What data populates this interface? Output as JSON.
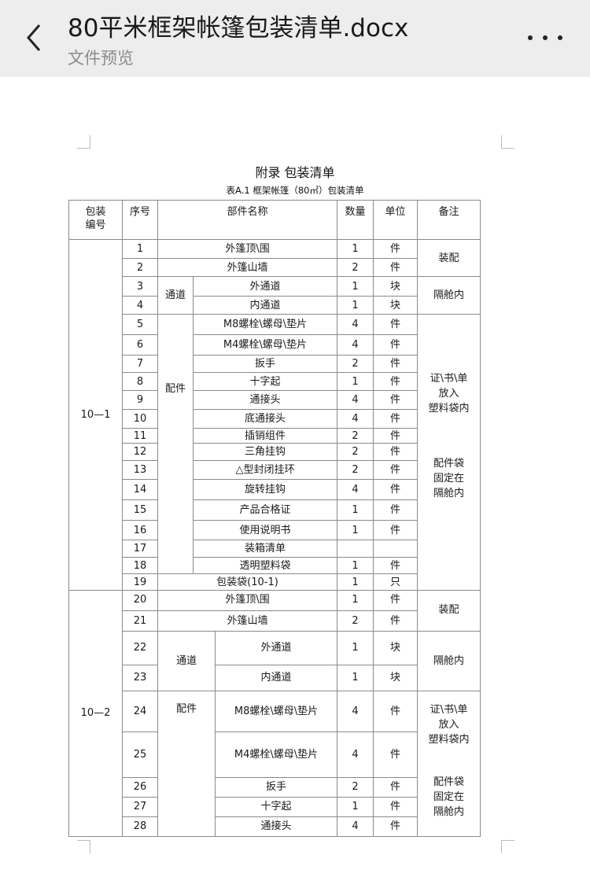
{
  "header": {
    "title": "80平米框架帐篷包装清单.docx",
    "subtitle": "文件预览",
    "back_icon": "chevron-left-icon",
    "more_icon": "more-horizontal-icon"
  },
  "document": {
    "heading": "附录  包装清单",
    "caption": "表A.1  框架帐篷（80㎡）包装清单",
    "columns": [
      "包装\n编号",
      "序号",
      "部件名称",
      "数量",
      "单位",
      "备注"
    ],
    "packages": [
      {
        "code": "10—1",
        "categories": [
          "通道",
          "配件"
        ],
        "remarks": [
          [
            "装配"
          ],
          [
            "隔舱内"
          ],
          [
            "证\\书\\单\n放入\n塑料袋内",
            "配件袋\n固定在\n隔舱内"
          ]
        ],
        "rows": [
          {
            "seq": "1",
            "name": "外篷顶\\围",
            "qty": "1",
            "unit": "件"
          },
          {
            "seq": "2",
            "name": "外篷山墙",
            "qty": "2",
            "unit": "件"
          },
          {
            "seq": "3",
            "name": "外通道",
            "qty": "1",
            "unit": "块"
          },
          {
            "seq": "4",
            "name": "内通道",
            "qty": "1",
            "unit": "块"
          },
          {
            "seq": "5",
            "name": "M8螺栓\\螺母\\垫片",
            "qty": "4",
            "unit": "件"
          },
          {
            "seq": "6",
            "name": "M4螺栓\\螺母\\垫片",
            "qty": "4",
            "unit": "件"
          },
          {
            "seq": "7",
            "name": "扳手",
            "qty": "2",
            "unit": "件"
          },
          {
            "seq": "8",
            "name": "十字起",
            "qty": "1",
            "unit": "件"
          },
          {
            "seq": "9",
            "name": "通接头",
            "qty": "4",
            "unit": "件"
          },
          {
            "seq": "10",
            "name": "底通接头",
            "qty": "4",
            "unit": "件"
          },
          {
            "seq": "11",
            "name": "插销组件",
            "qty": "2",
            "unit": "件"
          },
          {
            "seq": "12",
            "name": "三角挂钩",
            "qty": "2",
            "unit": "件"
          },
          {
            "seq": "13",
            "name": "△型封闭挂环",
            "qty": "2",
            "unit": "件"
          },
          {
            "seq": "14",
            "name": "旋转挂钩",
            "qty": "4",
            "unit": "件"
          },
          {
            "seq": "15",
            "name": "产品合格证",
            "qty": "1",
            "unit": "件"
          },
          {
            "seq": "16",
            "name": "使用说明书",
            "qty": "1",
            "unit": "件"
          },
          {
            "seq": "17",
            "name": "装箱清单",
            "qty": "",
            "unit": ""
          },
          {
            "seq": "18",
            "name": "透明塑料袋",
            "qty": "1",
            "unit": "件"
          },
          {
            "seq": "19",
            "name": "包装袋(10-1)",
            "qty": "1",
            "unit": "只"
          }
        ]
      },
      {
        "code": "10—2",
        "categories": [
          "通道",
          "配件"
        ],
        "remarks": [
          [
            "装配"
          ],
          [
            "隔舱内"
          ],
          [
            "证\\书\\单\n放入\n塑料袋内",
            "配件袋\n固定在\n隔舱内"
          ]
        ],
        "rows": [
          {
            "seq": "20",
            "name": "外篷顶\\围",
            "qty": "1",
            "unit": "件"
          },
          {
            "seq": "21",
            "name": "外篷山墙",
            "qty": "2",
            "unit": "件"
          },
          {
            "seq": "22",
            "name": "外通道",
            "qty": "1",
            "unit": "块"
          },
          {
            "seq": "23",
            "name": "内通道",
            "qty": "1",
            "unit": "块"
          },
          {
            "seq": "24",
            "name": "M8螺栓\\螺母\\垫片",
            "qty": "4",
            "unit": "件"
          },
          {
            "seq": "25",
            "name": "M4螺栓\\螺母\\垫片",
            "qty": "4",
            "unit": "件"
          },
          {
            "seq": "26",
            "name": "扳手",
            "qty": "2",
            "unit": "件"
          },
          {
            "seq": "27",
            "name": "十字起",
            "qty": "1",
            "unit": "件"
          },
          {
            "seq": "28",
            "name": "通接头",
            "qty": "4",
            "unit": "件"
          }
        ]
      }
    ]
  }
}
